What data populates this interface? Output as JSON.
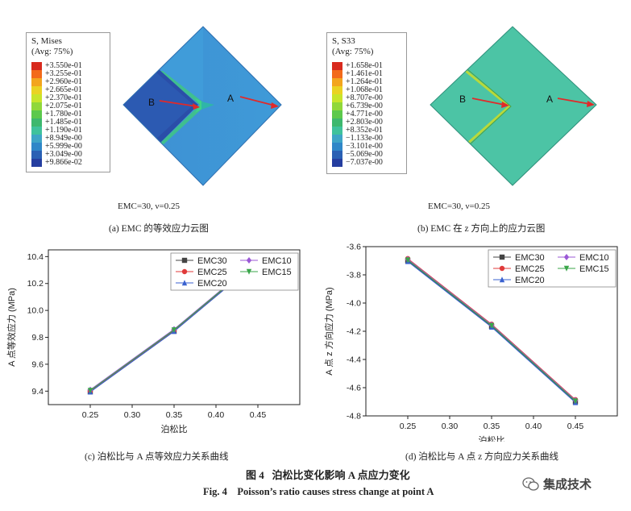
{
  "panel_a": {
    "legend_title": "S, Mises",
    "legend_subtitle": "(Avg: 75%)",
    "legend_values": [
      "+3.550e-01",
      "+3.255e-01",
      "+2.960e-01",
      "+2.665e-01",
      "+2.370e-01",
      "+2.075e-01",
      "+1.780e-01",
      "+1.485e-01",
      "+1.190e-01",
      "+8.949e-00",
      "+5.999e-00",
      "+3.049e-00",
      "+9.866e-02"
    ],
    "legend_colors": [
      "#d82a1e",
      "#f36a1a",
      "#f3a51e",
      "#ead323",
      "#c8e52b",
      "#90d83a",
      "#5cc94c",
      "#3db86e",
      "#3fc29c",
      "#3ea5c6",
      "#2f87c8",
      "#2a60b4",
      "#253ea0"
    ],
    "label_a": "A",
    "label_b": "B",
    "condition": "EMC=30, ν=0.25",
    "caption": "(a) EMC 的等效应力云图"
  },
  "panel_b": {
    "legend_title": "S, S33",
    "legend_subtitle": "(Avg: 75%)",
    "legend_values": [
      "+1.658e-01",
      "+1.461e-01",
      "+1.264e-01",
      "+1.068e-01",
      "+8.707e-00",
      "+6.739e-00",
      "+4.771e-00",
      "+2.803e-00",
      "+8.352e-01",
      "−1.133e-00",
      "−3.101e-00",
      "−5.069e-00",
      "−7.037e-00"
    ],
    "legend_colors": [
      "#d82a1e",
      "#f36a1a",
      "#f3a51e",
      "#ead323",
      "#c8e52b",
      "#90d83a",
      "#5cc94c",
      "#3db86e",
      "#3fc29c",
      "#3ea5c6",
      "#2f87c8",
      "#2a60b4",
      "#253ea0"
    ],
    "label_a": "A",
    "label_b": "B",
    "condition": "EMC=30, ν=0.25",
    "caption": "(b) EMC 在 z 方向上的应力云图"
  },
  "captions": {
    "c": "(c) 泊松比与 A 点等效应力关系曲线",
    "d": "(d) 泊松比与 A 点 z 方向应力关系曲线",
    "fig_cn": "图 4   泊松比变化影响 A 点应力变化",
    "fig_en": "Fig. 4    Poisson’s ratio causes stress change at point A"
  },
  "watermark": "集成技术",
  "chart_data": [
    {
      "type": "line",
      "xlabel": "泊松比",
      "ylabel": "A 点等效应力 (MPa)",
      "xlim": [
        0.2,
        0.5
      ],
      "ylim": [
        9.3,
        10.45
      ],
      "xticks": [
        0.25,
        0.3,
        0.35,
        0.4,
        0.45
      ],
      "xtick_labels": [
        "0.25",
        "0.30",
        "0.35",
        "0.40",
        "0.45"
      ],
      "yticks": [
        9.4,
        9.6,
        9.8,
        10.0,
        10.2,
        10.4
      ],
      "ytick_labels": [
        "9.4",
        "9.6",
        "9.8",
        "10.0",
        "10.2",
        "10.4"
      ],
      "x": [
        0.25,
        0.35,
        0.45
      ],
      "series": [
        {
          "name": "EMC30",
          "color": "#444444",
          "marker": "square",
          "values": [
            9.395,
            9.845,
            10.365
          ]
        },
        {
          "name": "EMC25",
          "color": "#e03a3a",
          "marker": "circle",
          "values": [
            9.4,
            9.85,
            10.37
          ]
        },
        {
          "name": "EMC20",
          "color": "#3a62d0",
          "marker": "triangle",
          "values": [
            9.395,
            9.845,
            10.365
          ]
        },
        {
          "name": "EMC10",
          "color": "#9b59d6",
          "marker": "diamond",
          "values": [
            9.41,
            9.86,
            10.38
          ]
        },
        {
          "name": "EMC15",
          "color": "#3aa64a",
          "marker": "tri-down",
          "values": [
            9.405,
            9.855,
            10.375
          ]
        }
      ]
    },
    {
      "type": "line",
      "xlabel": "泊松比",
      "ylabel": "A 点 z 方向应力 (MPa)",
      "xlim": [
        0.2,
        0.5
      ],
      "ylim": [
        -4.8,
        -3.6
      ],
      "xticks": [
        0.25,
        0.3,
        0.35,
        0.4,
        0.45
      ],
      "xtick_labels": [
        "0.25",
        "0.30",
        "0.35",
        "0.40",
        "0.45"
      ],
      "yticks": [
        -3.6,
        -3.8,
        -4.0,
        -4.2,
        -4.4,
        -4.6,
        -4.8
      ],
      "ytick_labels": [
        "-3.6",
        "-3.8",
        "-4.0",
        "-4.2",
        "-4.4",
        "-4.6",
        "-4.8"
      ],
      "x": [
        0.25,
        0.35,
        0.45
      ],
      "series": [
        {
          "name": "EMC30",
          "color": "#444444",
          "marker": "square",
          "values": [
            -3.7,
            -4.165,
            -4.7
          ]
        },
        {
          "name": "EMC25",
          "color": "#e03a3a",
          "marker": "circle",
          "values": [
            -3.685,
            -4.15,
            -4.685
          ]
        },
        {
          "name": "EMC20",
          "color": "#3a62d0",
          "marker": "triangle",
          "values": [
            -3.705,
            -4.17,
            -4.705
          ]
        },
        {
          "name": "EMC10",
          "color": "#9b59d6",
          "marker": "diamond",
          "values": [
            -3.69,
            -4.155,
            -4.69
          ]
        },
        {
          "name": "EMC15",
          "color": "#3aa64a",
          "marker": "tri-down",
          "values": [
            -3.695,
            -4.16,
            -4.695
          ]
        }
      ]
    }
  ]
}
